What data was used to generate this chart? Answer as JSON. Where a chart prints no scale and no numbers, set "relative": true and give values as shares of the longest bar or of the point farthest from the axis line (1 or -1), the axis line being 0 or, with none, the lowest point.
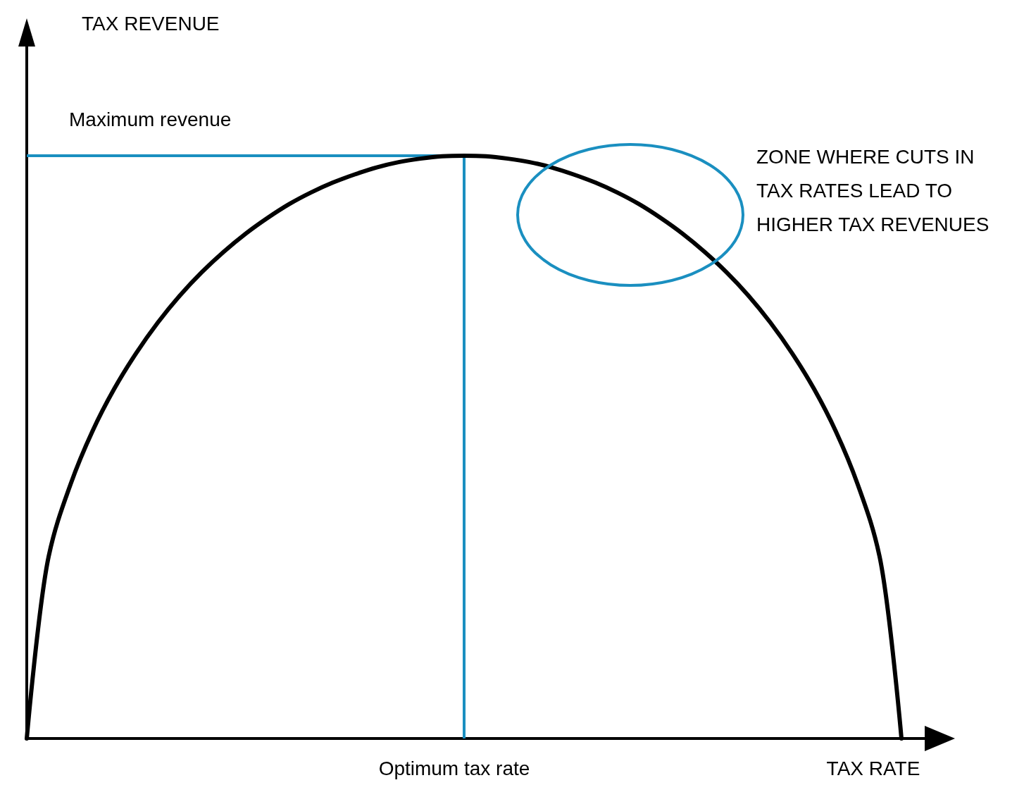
{
  "chart_data": {
    "type": "line",
    "relative": true,
    "xlabel": "TAX RATE",
    "categories": [
      null,
      null,
      null,
      null,
      null,
      null,
      null,
      null,
      null,
      null,
      null,
      null,
      null,
      null,
      null,
      null,
      null,
      null,
      null,
      null,
      null,
      null,
      null,
      null,
      null,
      null,
      null,
      null,
      null,
      null,
      null,
      null,
      null,
      null,
      null,
      null,
      null,
      null,
      null,
      null,
      null
    ],
    "series": [
      {
        "color": "#000000",
        "values": [
          0,
          0.312,
          0.436,
          0.527,
          0.6,
          0.661,
          0.714,
          0.76,
          0.8,
          0.835,
          0.866,
          0.893,
          0.917,
          0.937,
          0.954,
          0.968,
          0.98,
          0.989,
          0.995,
          0.999,
          1,
          0.999,
          0.995,
          0.989,
          0.98,
          0.968,
          0.954,
          0.937,
          0.917,
          0.893,
          0.866,
          0.835,
          0.8,
          0.76,
          0.714,
          0.661,
          0.6,
          0.527,
          0.436,
          0.312,
          0
        ]
      }
    ],
    "ref_lines": [
      {
        "axis": "y",
        "value": 1,
        "label": "Maximum revenue",
        "color": "#1a8fc0"
      }
    ],
    "annotations": [
      "TAX REVENUE",
      "Optimum tax rate",
      "ZONE WHERE CUTS IN TAX RATES LEAD TO HIGHER TAX REVENUES"
    ],
    "line_style": "solid"
  }
}
